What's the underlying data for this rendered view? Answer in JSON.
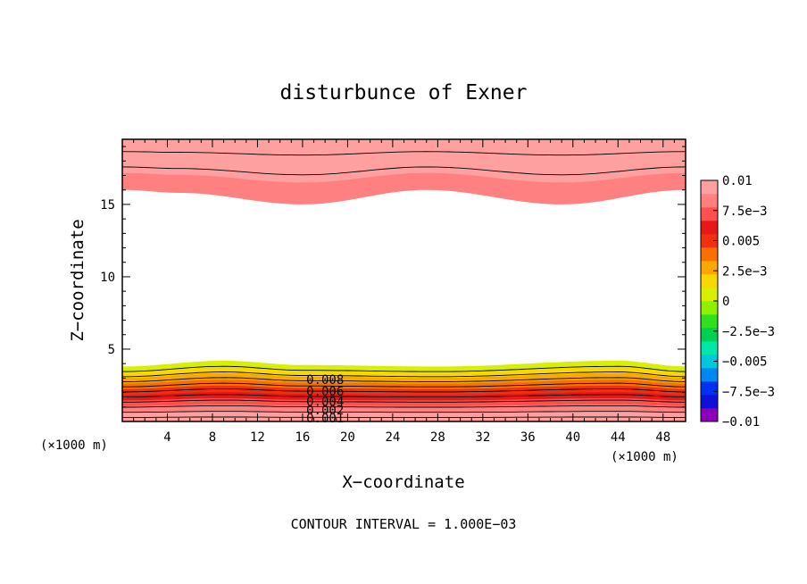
{
  "chart_data": {
    "type": "heatmap",
    "title": "disturbunce of Exner",
    "xlabel": "X−coordinate",
    "ylabel": "Z−coordinate",
    "x_unit": "(×1000 m)",
    "x_unit_right": "(×1000 m)",
    "xlim": [
      0,
      50
    ],
    "ylim": [
      0,
      19.5
    ],
    "x_ticks": [
      4,
      8,
      12,
      16,
      20,
      24,
      28,
      32,
      36,
      40,
      44,
      48
    ],
    "x_tick_labels": [
      "4",
      "8",
      "12",
      "16",
      "20",
      "24",
      "28",
      "32",
      "36",
      "40",
      "44",
      "48"
    ],
    "y_ticks": [
      5,
      10,
      15
    ],
    "y_tick_labels": [
      "5",
      "10",
      "15"
    ],
    "contour_interval_text": "CONTOUR INTERVAL = 1.000E−03",
    "contour_interval": 0.001,
    "contour_line_labels": [
      {
        "text": "0.008",
        "x": 18,
        "z": 2.9
      },
      {
        "text": "0.006",
        "x": 18,
        "z": 2.1
      },
      {
        "text": "0.004",
        "x": 18,
        "z": 1.4
      },
      {
        "text": "0.002",
        "x": 18,
        "z": 0.8
      },
      {
        "text": "0.001",
        "x": 18,
        "z": 0.25
      }
    ],
    "colorbar": {
      "min": -0.01,
      "max": 0.01,
      "colors": [
        "#8B00B8",
        "#1010D8",
        "#0030F0",
        "#0088F0",
        "#00C8D8",
        "#00E8A8",
        "#00D050",
        "#30E020",
        "#90F000",
        "#D8F000",
        "#F8D800",
        "#F8A800",
        "#F87000",
        "#F03010",
        "#E81818",
        "#FF5050",
        "#FF8080",
        "#FFA0A0"
      ],
      "tick_labels": [
        "0.01",
        "7.5e−3",
        "0.005",
        "2.5e−3",
        "0",
        "−2.5e−3",
        "−0.005",
        "−7.5e−3",
        "−0.01"
      ],
      "tick_values": [
        0.01,
        0.0075,
        0.005,
        0.0025,
        0,
        -0.0025,
        -0.005,
        -0.0075,
        -0.01
      ]
    },
    "field_description": {
      "lower_layer_levels": [
        0.001,
        0.002,
        0.003,
        0.004,
        0.005,
        0.006,
        0.007,
        0.008,
        0.009,
        0.01
      ],
      "upper_layer_levels": [
        0.008,
        0.009,
        0.01
      ],
      "lower_top_z": [
        [
          0,
          3.8
        ],
        [
          9,
          4.2
        ],
        [
          16,
          3.9
        ],
        [
          28,
          3.8
        ],
        [
          44,
          4.2
        ],
        [
          50,
          3.8
        ]
      ],
      "upper_bottom_z": [
        [
          0,
          16.0
        ],
        [
          5,
          15.8
        ],
        [
          16,
          15.0
        ],
        [
          27,
          16.0
        ],
        [
          39,
          15.0
        ],
        [
          50,
          16.0
        ]
      ]
    }
  }
}
